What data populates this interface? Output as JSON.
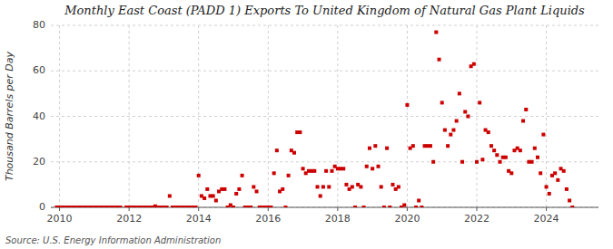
{
  "chart_data": {
    "type": "scatter",
    "title": "Monthly East Coast (PADD 1) Exports To United Kingdom of Natural Gas Plant Liquids",
    "y_label": "Thousand Barrels per Day",
    "annotations": [
      "Source: U.S. Energy Information Administration"
    ],
    "color": "#cc0000",
    "marker": "square",
    "grid": true,
    "xlim": [
      2009.75,
      2025.5
    ],
    "xticks": [
      2010,
      2012,
      2014,
      2016,
      2018,
      2020,
      2022,
      2024
    ],
    "ylim": [
      0,
      80
    ],
    "yticks": [
      0,
      20,
      40,
      60,
      80
    ],
    "x": [
      2009.917,
      2010.0,
      2010.083,
      2010.167,
      2010.25,
      2010.333,
      2010.417,
      2010.5,
      2010.583,
      2010.667,
      2010.75,
      2010.833,
      2010.917,
      2011.0,
      2011.083,
      2011.167,
      2011.25,
      2011.333,
      2011.417,
      2011.5,
      2011.583,
      2011.667,
      2011.75,
      2011.917,
      2012.0,
      2012.083,
      2012.167,
      2012.25,
      2012.333,
      2012.417,
      2012.5,
      2012.583,
      2012.667,
      2012.75,
      2012.833,
      2012.917,
      2013.0,
      2013.083,
      2013.167,
      2013.25,
      2013.333,
      2013.417,
      2013.5,
      2013.583,
      2013.667,
      2013.75,
      2013.833,
      2013.917,
      2014.0,
      2014.083,
      2014.167,
      2014.25,
      2014.333,
      2014.417,
      2014.5,
      2014.583,
      2014.667,
      2014.75,
      2014.833,
      2014.917,
      2015.0,
      2015.083,
      2015.167,
      2015.25,
      2015.333,
      2015.417,
      2015.5,
      2015.583,
      2015.667,
      2015.75,
      2015.833,
      2015.917,
      2016.0,
      2016.083,
      2016.167,
      2016.25,
      2016.333,
      2016.417,
      2016.5,
      2016.583,
      2016.667,
      2016.75,
      2016.833,
      2016.917,
      2017.0,
      2017.083,
      2017.167,
      2017.25,
      2017.333,
      2017.417,
      2017.5,
      2017.583,
      2017.667,
      2017.75,
      2017.833,
      2017.917,
      2018.0,
      2018.083,
      2018.167,
      2018.25,
      2018.333,
      2018.417,
      2018.5,
      2018.583,
      2018.667,
      2018.75,
      2018.833,
      2018.917,
      2019.0,
      2019.083,
      2019.167,
      2019.25,
      2019.333,
      2019.417,
      2019.5,
      2019.583,
      2019.667,
      2019.75,
      2019.833,
      2019.917,
      2020.0,
      2020.083,
      2020.167,
      2020.25,
      2020.333,
      2020.417,
      2020.5,
      2020.583,
      2020.667,
      2020.75,
      2020.833,
      2020.917,
      2021.0,
      2021.083,
      2021.167,
      2021.25,
      2021.333,
      2021.417,
      2021.5,
      2021.583,
      2021.667,
      2021.75,
      2021.833,
      2021.917,
      2022.0,
      2022.083,
      2022.167,
      2022.25,
      2022.333,
      2022.417,
      2022.5,
      2022.583,
      2022.667,
      2022.75,
      2022.833,
      2022.917,
      2023.0,
      2023.083,
      2023.167,
      2023.25,
      2023.333,
      2023.417,
      2023.5,
      2023.583,
      2023.667,
      2023.75,
      2023.833,
      2023.917,
      2024.0,
      2024.083,
      2024.167,
      2024.25,
      2024.333,
      2024.417,
      2024.5,
      2024.583,
      2024.667,
      2024.75
    ],
    "values": [
      0,
      0,
      0,
      0,
      0,
      0,
      0,
      0,
      0,
      0,
      0,
      0,
      0,
      0,
      0,
      0,
      0,
      0,
      0,
      0,
      0,
      0,
      0,
      0,
      0,
      0,
      0,
      0,
      0,
      0,
      0,
      0,
      0,
      0.5,
      0,
      0,
      0,
      0,
      5,
      0,
      0,
      0,
      0,
      0,
      0,
      0,
      0,
      0,
      14,
      5,
      4,
      8,
      5,
      5,
      3,
      7,
      8,
      8,
      0,
      1,
      0,
      6,
      8,
      14,
      0,
      0,
      0,
      9,
      7,
      0,
      0,
      0,
      0,
      0,
      15,
      25,
      7,
      8,
      0,
      14,
      25,
      24,
      33,
      33,
      17,
      15,
      16,
      16,
      16,
      9,
      5,
      9,
      16,
      9,
      16,
      18,
      17,
      17,
      17,
      10,
      8,
      9,
      0,
      10,
      9,
      0,
      18,
      26,
      17,
      27,
      18,
      9,
      0,
      26,
      0,
      10,
      8,
      9,
      0,
      1,
      45,
      26,
      27,
      0,
      3,
      0,
      27,
      27,
      27,
      20,
      77,
      65,
      46,
      34,
      27,
      32,
      34,
      38,
      50,
      20,
      42,
      40,
      62,
      63,
      20,
      46,
      21,
      34,
      33,
      27,
      25,
      23,
      20,
      22,
      22,
      16,
      15,
      25,
      26,
      25,
      38,
      43,
      20,
      20,
      26,
      22,
      15,
      32,
      9,
      6,
      14,
      15,
      12,
      17,
      16,
      8,
      3,
      0
    ]
  }
}
